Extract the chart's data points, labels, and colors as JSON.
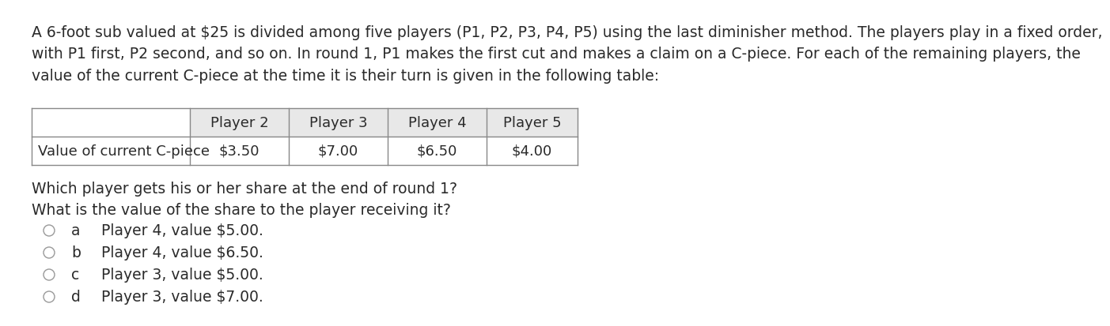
{
  "background_color": "#ffffff",
  "paragraph": "A 6-foot sub valued at $25 is divided among five players (P1, P2, P3, P4, P5) using the last diminisher method. The players play in a fixed order,\nwith P1 first, P2 second, and so on. In round 1, P1 makes the first cut and makes a claim on a C-piece. For each of the remaining players, the\nvalue of the current C-piece at the time it is their turn is given in the following table:",
  "table_col_headers": [
    "Player 2",
    "Player 3",
    "Player 4",
    "Player 5"
  ],
  "table_row_label": "Value of current C-piece",
  "table_values": [
    "$3.50",
    "$7.00",
    "$6.50",
    "$4.00"
  ],
  "question_text": "Which player gets his or her share at the end of round 1?\nWhat is the value of the share to the player receiving it?",
  "choices": [
    {
      "label": "a",
      "text": "Player 4, value $5.00."
    },
    {
      "label": "b",
      "text": "Player 4, value $6.50."
    },
    {
      "label": "c",
      "text": "Player 3, value $5.00."
    },
    {
      "label": "d",
      "text": "Player 3, value $7.00."
    }
  ],
  "text_color": "#2a2a2a",
  "table_border_color": "#888888",
  "table_header_bg": "#e8e8e8",
  "font_size_paragraph": 13.5,
  "font_size_table": 13.0,
  "font_size_question": 13.5,
  "font_size_choices": 13.5
}
